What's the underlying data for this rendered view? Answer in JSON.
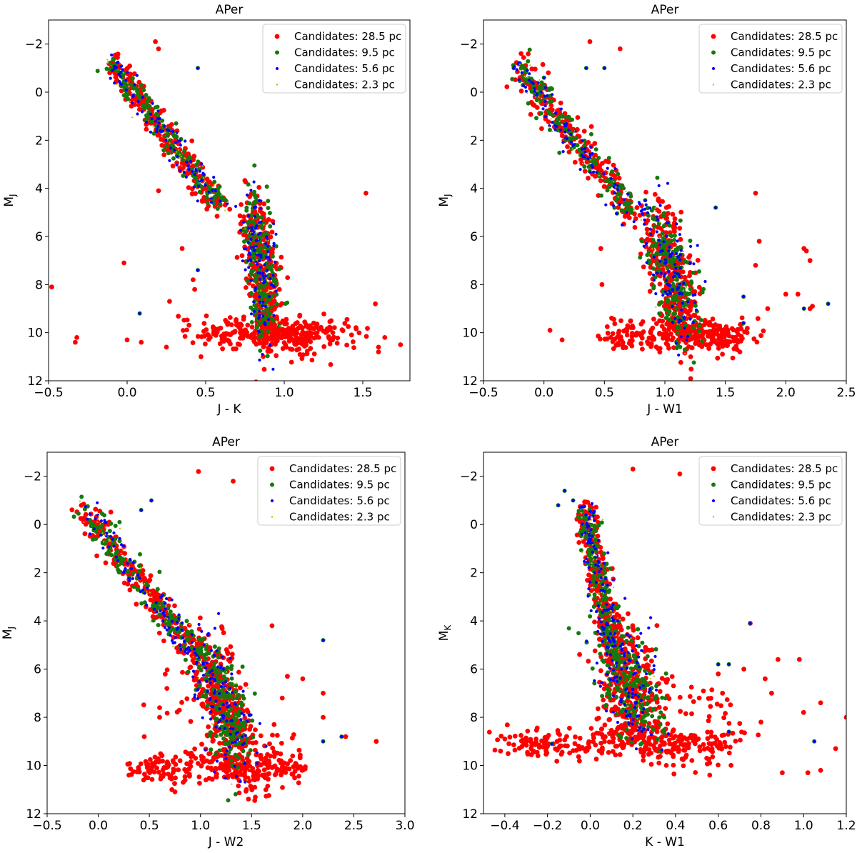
{
  "colors": {
    "red": "#ff0000",
    "green": "#157a0c",
    "blue": "#0000ff",
    "yellow": "#b5c400"
  },
  "chart_data": [
    {
      "type": "scatter",
      "title": "APer",
      "xlabel": "J - K",
      "ylabel_main": "M",
      "ylabel_sub": "J",
      "xlim": [
        -0.5,
        1.8
      ],
      "ylim": [
        12,
        -3
      ],
      "xticks": [
        -0.5,
        0.0,
        0.5,
        1.0,
        1.5
      ],
      "xtick_labels": [
        "−0.5",
        "0.0",
        "0.5",
        "1.0",
        "1.5"
      ],
      "yticks": [
        -2,
        0,
        2,
        4,
        6,
        8,
        10,
        12
      ],
      "ytick_labels": [
        "−2",
        "0",
        "2",
        "4",
        "6",
        "8",
        "10",
        "12"
      ],
      "legend": [
        "Candidates: 28.5 pc",
        "Candidates: 9.5 pc",
        "Candidates: 5.6 pc",
        "Candidates: 2.3 pc"
      ],
      "legend_position": "top-right",
      "mode": "jk",
      "outliers_red": [
        [
          0.18,
          -2.1
        ],
        [
          0.2,
          -1.8
        ],
        [
          -0.48,
          8.1
        ],
        [
          -0.32,
          10.2
        ],
        [
          -0.33,
          10.4
        ],
        [
          0.0,
          10.3
        ],
        [
          0.09,
          10.4
        ],
        [
          -0.02,
          7.1
        ],
        [
          0.2,
          4.1
        ],
        [
          0.27,
          8.7
        ],
        [
          0.35,
          6.5
        ],
        [
          0.42,
          7.8
        ],
        [
          0.43,
          8.2
        ],
        [
          1.52,
          4.2
        ],
        [
          1.6,
          10.6
        ],
        [
          1.6,
          10.8
        ],
        [
          1.64,
          10.2
        ],
        [
          1.74,
          10.5
        ],
        [
          1.58,
          8.8
        ],
        [
          0.25,
          10.6
        ],
        [
          0.47,
          11.0
        ]
      ],
      "outliers_green": [
        [
          0.45,
          -1.0
        ],
        [
          0.08,
          9.2
        ]
      ],
      "outliers_blue": [
        [
          0.45,
          7.4
        ]
      ]
    },
    {
      "type": "scatter",
      "title": "APer",
      "xlabel": "J - W1",
      "ylabel_main": "M",
      "ylabel_sub": "J",
      "xlim": [
        -0.5,
        2.5
      ],
      "ylim": [
        12,
        -3
      ],
      "xticks": [
        -0.5,
        0.0,
        0.5,
        1.0,
        1.5,
        2.0,
        2.5
      ],
      "xtick_labels": [
        "−0.5",
        "0.0",
        "0.5",
        "1.0",
        "1.5",
        "2.0",
        "2.5"
      ],
      "yticks": [
        -2,
        0,
        2,
        4,
        6,
        8,
        10,
        12
      ],
      "ytick_labels": [
        "−2",
        "0",
        "2",
        "4",
        "6",
        "8",
        "10",
        "12"
      ],
      "legend": [
        "Candidates: 28.5 pc",
        "Candidates: 9.5 pc",
        "Candidates: 5.6 pc",
        "Candidates: 2.3 pc"
      ],
      "legend_position": "top-right",
      "mode": "jw1",
      "outliers_red": [
        [
          0.38,
          -2.1
        ],
        [
          0.63,
          -1.8
        ],
        [
          0.05,
          9.9
        ],
        [
          0.15,
          10.3
        ],
        [
          0.47,
          6.5
        ],
        [
          0.48,
          8.0
        ],
        [
          1.75,
          4.2
        ],
        [
          1.78,
          6.2
        ],
        [
          2.15,
          6.5
        ],
        [
          2.17,
          6.6
        ],
        [
          2.2,
          7.0
        ],
        [
          1.75,
          7.2
        ],
        [
          2.1,
          8.4
        ],
        [
          2.0,
          8.4
        ],
        [
          2.2,
          9.0
        ],
        [
          1.85,
          9.0
        ],
        [
          2.22,
          8.9
        ],
        [
          1.62,
          10.8
        ]
      ],
      "outliers_green": [
        [
          0.35,
          -1.0
        ],
        [
          -0.25,
          -1.0
        ],
        [
          -0.2,
          -1.2
        ],
        [
          0.5,
          -1.0
        ],
        [
          2.15,
          9.0
        ]
      ],
      "outliers_blue": [
        [
          0.0,
          -0.6
        ],
        [
          1.42,
          4.8
        ],
        [
          1.65,
          8.5
        ],
        [
          1.65,
          9.6
        ],
        [
          2.35,
          8.8
        ]
      ]
    },
    {
      "type": "scatter",
      "title": "APer",
      "xlabel": "J - W2",
      "ylabel_main": "M",
      "ylabel_sub": "J",
      "xlim": [
        -0.5,
        3.0
      ],
      "ylim": [
        12,
        -3
      ],
      "xticks": [
        -0.5,
        0.0,
        0.5,
        1.0,
        1.5,
        2.0,
        2.5,
        3.0
      ],
      "xtick_labels": [
        "−0.5",
        "0.0",
        "0.5",
        "1.0",
        "1.5",
        "2.0",
        "2.5",
        "3.0"
      ],
      "yticks": [
        -2,
        0,
        2,
        4,
        6,
        8,
        10,
        12
      ],
      "ytick_labels": [
        "−2",
        "0",
        "2",
        "4",
        "6",
        "8",
        "10",
        "12"
      ],
      "legend": [
        "Candidates: 28.5 pc",
        "Candidates: 9.5 pc",
        "Candidates: 5.6 pc",
        "Candidates: 2.3 pc"
      ],
      "legend_position": "top-right",
      "mode": "jw2",
      "outliers_red": [
        [
          0.98,
          -2.2
        ],
        [
          1.32,
          -1.8
        ],
        [
          1.7,
          4.2
        ],
        [
          0.45,
          8.8
        ],
        [
          0.6,
          7.6
        ],
        [
          0.6,
          8.0
        ],
        [
          0.3,
          10.4
        ],
        [
          0.8,
          9.8
        ],
        [
          2.72,
          9.0
        ],
        [
          2.42,
          8.8
        ],
        [
          2.2,
          8.0
        ],
        [
          2.2,
          7.0
        ],
        [
          2.0,
          6.4
        ],
        [
          1.85,
          6.3
        ],
        [
          1.8,
          7.2
        ],
        [
          1.72,
          8.3
        ],
        [
          0.72,
          11.0
        ],
        [
          1.45,
          11.0
        ]
      ],
      "outliers_green": [
        [
          0.52,
          -1.0
        ],
        [
          2.2,
          9.0
        ]
      ],
      "outliers_blue": [
        [
          0.42,
          -0.6
        ],
        [
          2.2,
          4.8
        ],
        [
          2.38,
          8.8
        ]
      ]
    },
    {
      "type": "scatter",
      "title": "APer",
      "xlabel": "K - W1",
      "ylabel_main": "M",
      "ylabel_sub": "K",
      "xlim": [
        -0.5,
        1.2
      ],
      "ylim": [
        12,
        -3
      ],
      "xticks": [
        -0.4,
        -0.2,
        0.0,
        0.2,
        0.4,
        0.6,
        0.8,
        1.0,
        1.2
      ],
      "xtick_labels": [
        "−0.4",
        "−0.2",
        "0.0",
        "0.2",
        "0.4",
        "0.6",
        "0.8",
        "1.0",
        "1.2"
      ],
      "yticks": [
        -2,
        0,
        2,
        4,
        6,
        8,
        10,
        12
      ],
      "ytick_labels": [
        "−2",
        "0",
        "2",
        "4",
        "6",
        "8",
        "10",
        "12"
      ],
      "legend": [
        "Candidates: 28.5 pc",
        "Candidates: 9.5 pc",
        "Candidates: 5.6 pc",
        "Candidates: 2.3 pc"
      ],
      "legend_position": "top-right",
      "mode": "kw1",
      "outliers_red": [
        [
          0.2,
          -2.3
        ],
        [
          0.42,
          -2.1
        ],
        [
          0.75,
          4.1
        ],
        [
          1.2,
          8.0
        ],
        [
          1.15,
          9.3
        ],
        [
          1.08,
          10.2
        ],
        [
          1.02,
          10.3
        ],
        [
          0.9,
          10.3
        ],
        [
          0.98,
          5.6
        ],
        [
          0.82,
          6.4
        ],
        [
          0.85,
          7.0
        ],
        [
          1.08,
          7.4
        ],
        [
          1.0,
          7.8
        ],
        [
          0.8,
          8.2
        ],
        [
          0.72,
          6.0
        ],
        [
          0.6,
          6.2
        ],
        [
          0.62,
          7.0
        ],
        [
          0.88,
          5.6
        ],
        [
          -0.42,
          9.4
        ],
        [
          -0.4,
          8.9
        ],
        [
          -0.3,
          9.0
        ],
        [
          -0.2,
          9.2
        ],
        [
          0.56,
          10.4
        ]
      ],
      "outliers_green": [
        [
          -0.12,
          -1.4
        ],
        [
          -0.15,
          -0.8
        ],
        [
          -0.08,
          -1.0
        ],
        [
          1.05,
          9.0
        ],
        [
          -0.18,
          9.1
        ]
      ],
      "outliers_blue": [
        [
          -0.02,
          -0.4
        ],
        [
          0.75,
          4.1
        ],
        [
          0.6,
          5.8
        ],
        [
          0.65,
          5.8
        ],
        [
          0.65,
          8.6
        ]
      ]
    }
  ]
}
